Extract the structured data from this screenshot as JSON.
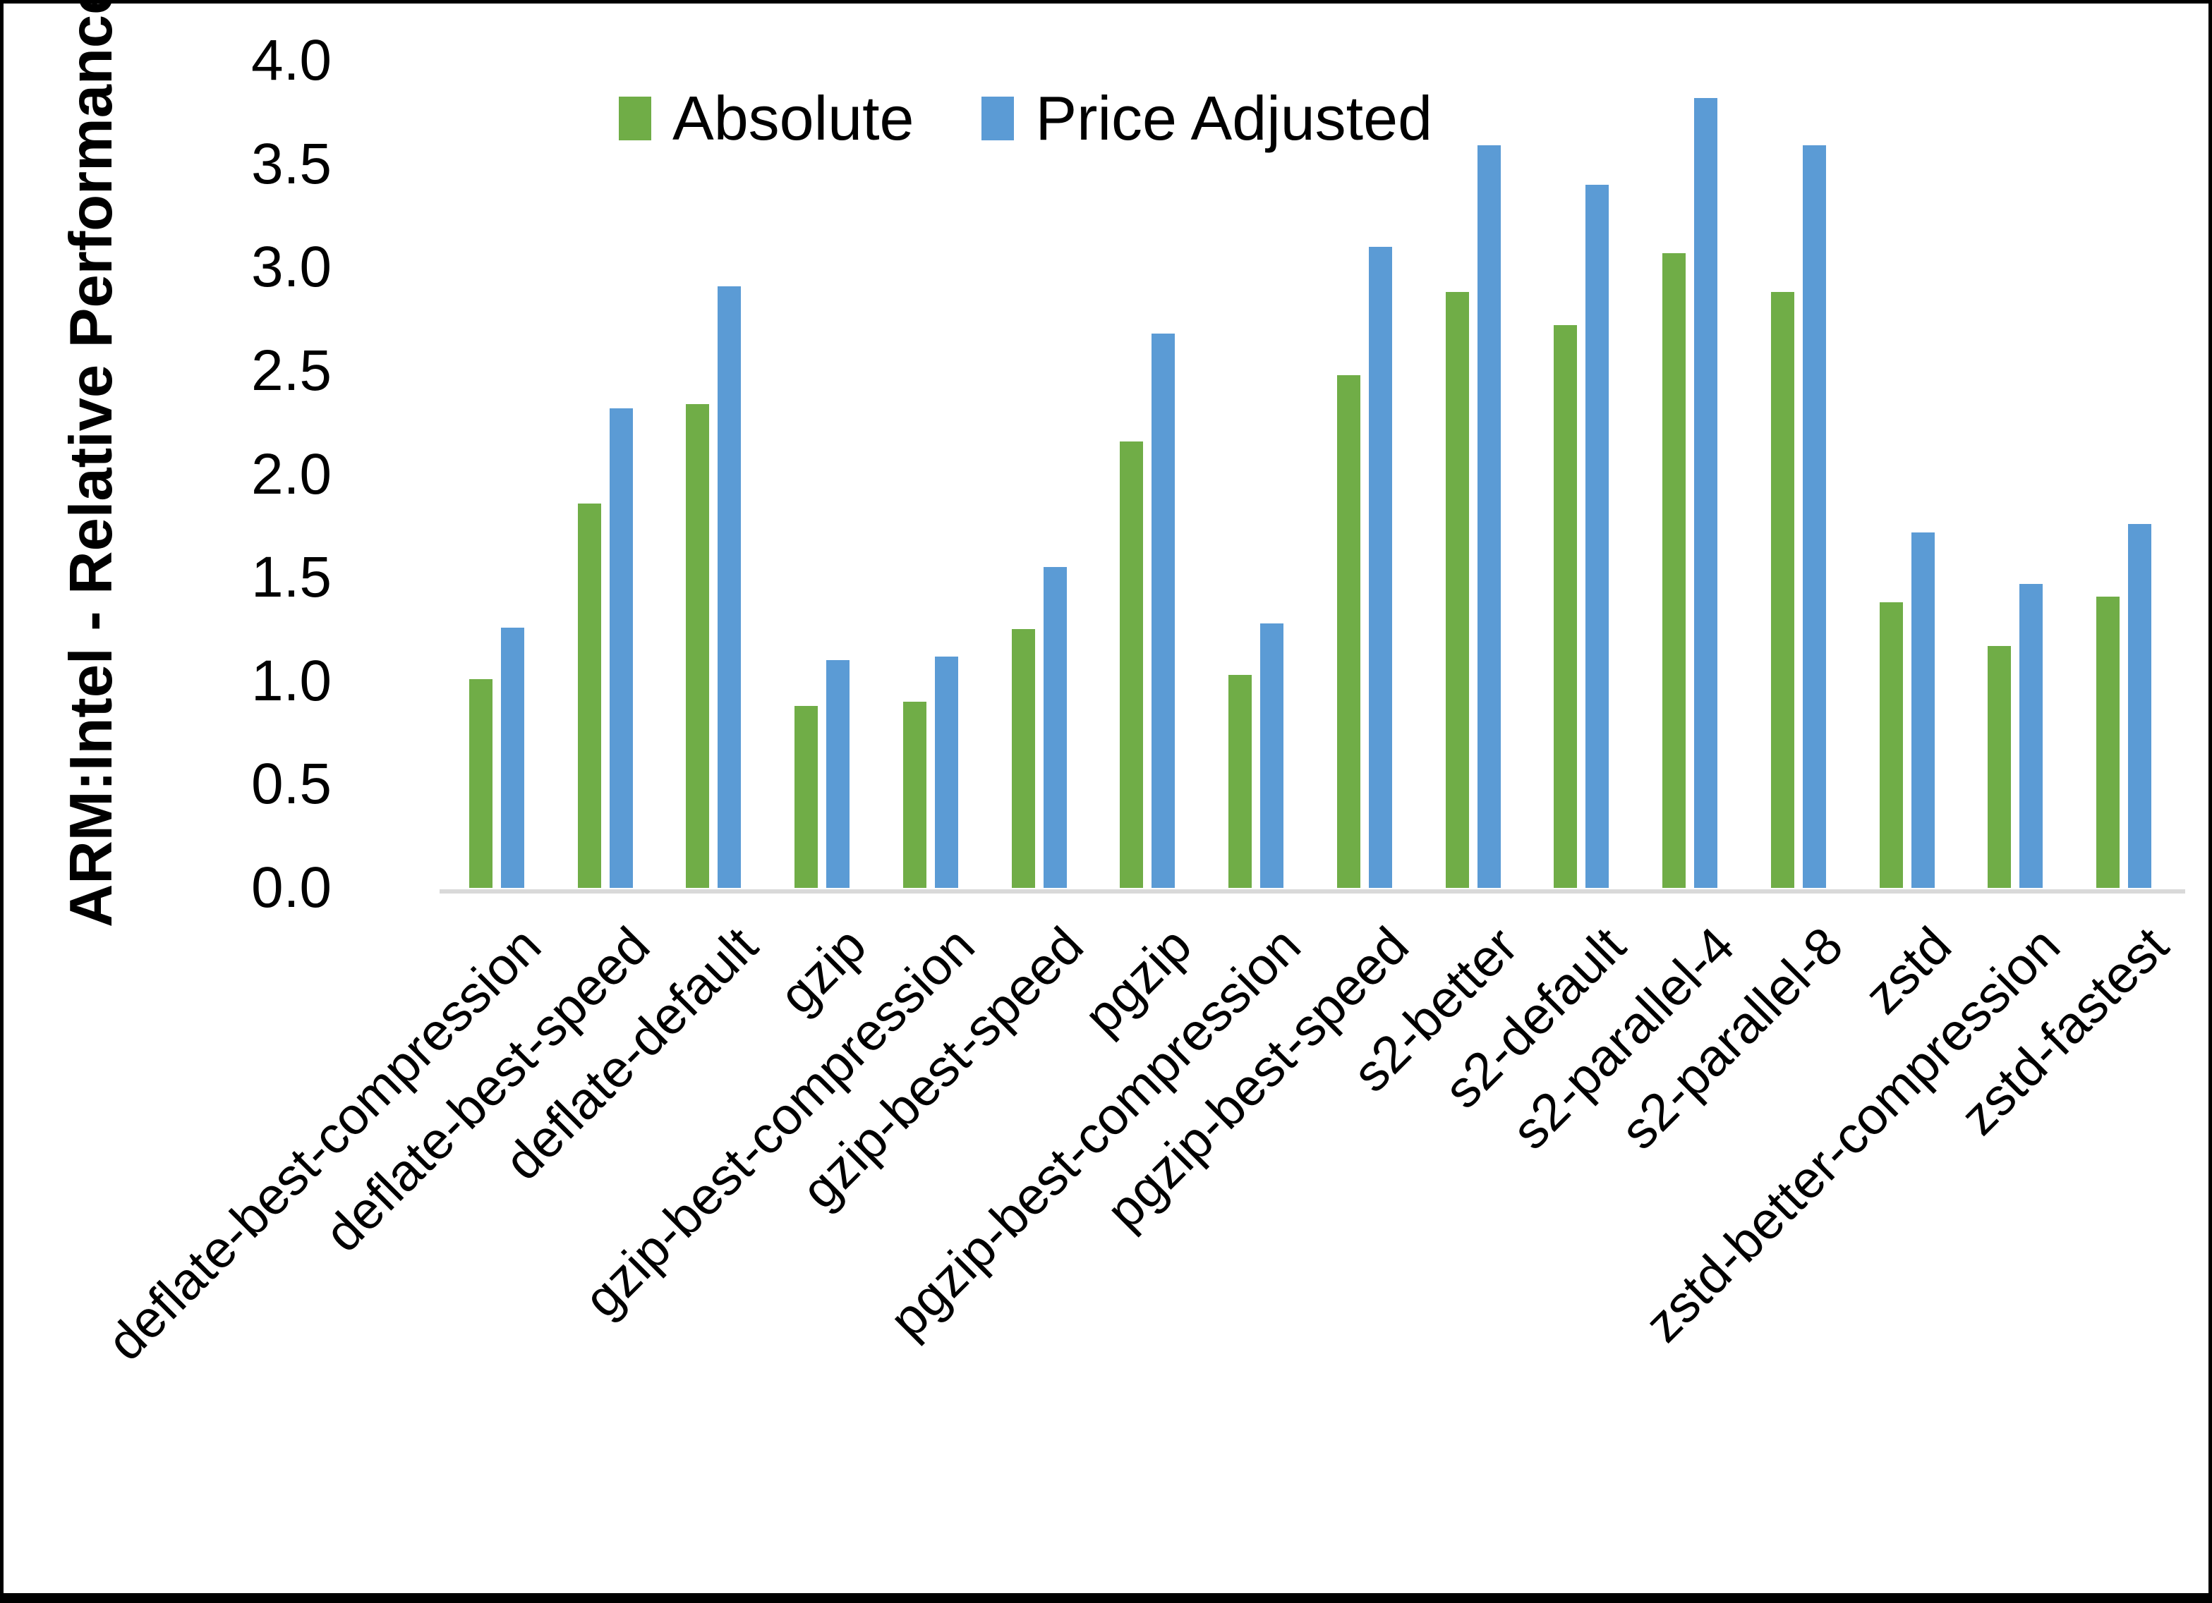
{
  "chart_data": {
    "type": "bar",
    "title": "",
    "ylabel": "ARM:Intel - Relative Performance",
    "xlabel": "",
    "ylim": [
      0.0,
      4.0
    ],
    "ytick_step": 0.5,
    "yticks": [
      "4.0",
      "3.5",
      "3.0",
      "2.5",
      "2.0",
      "1.5",
      "1.0",
      "0.5",
      "0.0"
    ],
    "grid": false,
    "legend_position": "top-center-inside",
    "background_color": "#FFFFFF",
    "axis_line_color": "#D9D9D9",
    "text_color": "#000000",
    "categories": [
      "deflate-best-compression",
      "deflate-best-speed",
      "deflate-default",
      "gzip",
      "gzip-best-compression",
      "gzip-best-speed",
      "pgzip",
      "pgzip-best-compression",
      "pgzip-best-speed",
      "s2-better",
      "s2-default",
      "s2-parallel-4",
      "s2-parallel-8",
      "zstd",
      "zstd-better-compression",
      "zstd-fastest"
    ],
    "series": [
      {
        "name": "Absolute",
        "color": "#70AD47",
        "values": [
          1.01,
          1.86,
          2.34,
          0.88,
          0.9,
          1.25,
          2.16,
          1.03,
          2.48,
          2.88,
          2.72,
          3.07,
          2.88,
          1.38,
          1.17,
          1.41
        ]
      },
      {
        "name": "Price Adjusted",
        "color": "#5B9BD5",
        "values": [
          1.26,
          2.32,
          2.91,
          1.1,
          1.12,
          1.55,
          2.68,
          1.28,
          3.1,
          3.59,
          3.4,
          3.82,
          3.59,
          1.72,
          1.47,
          1.76
        ]
      }
    ]
  }
}
